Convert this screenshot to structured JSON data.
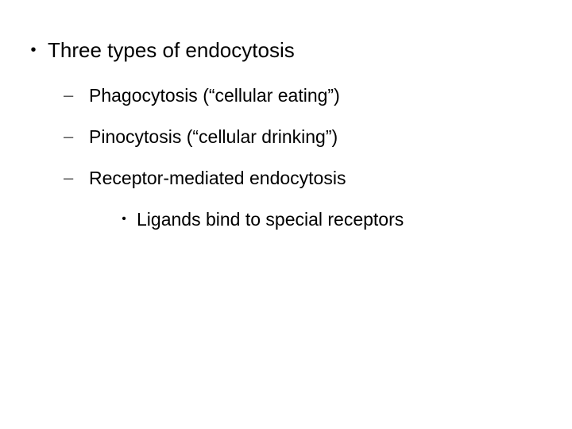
{
  "colors": {
    "background": "#ffffff",
    "text": "#000000",
    "dash": "#595959"
  },
  "typography": {
    "family": "Arial",
    "level1_fontsize": 26,
    "level2_fontsize": 23,
    "level3_fontsize": 23
  },
  "bullets": {
    "level1": "•",
    "level2": "–",
    "level3": "•"
  },
  "content": {
    "heading": "Three types of endocytosis",
    "items": [
      "Phagocytosis (“cellular eating”)",
      "Pinocytosis (“cellular drinking”)",
      "Receptor-mediated endocytosis"
    ],
    "subitem": "Ligands bind to special receptors"
  }
}
